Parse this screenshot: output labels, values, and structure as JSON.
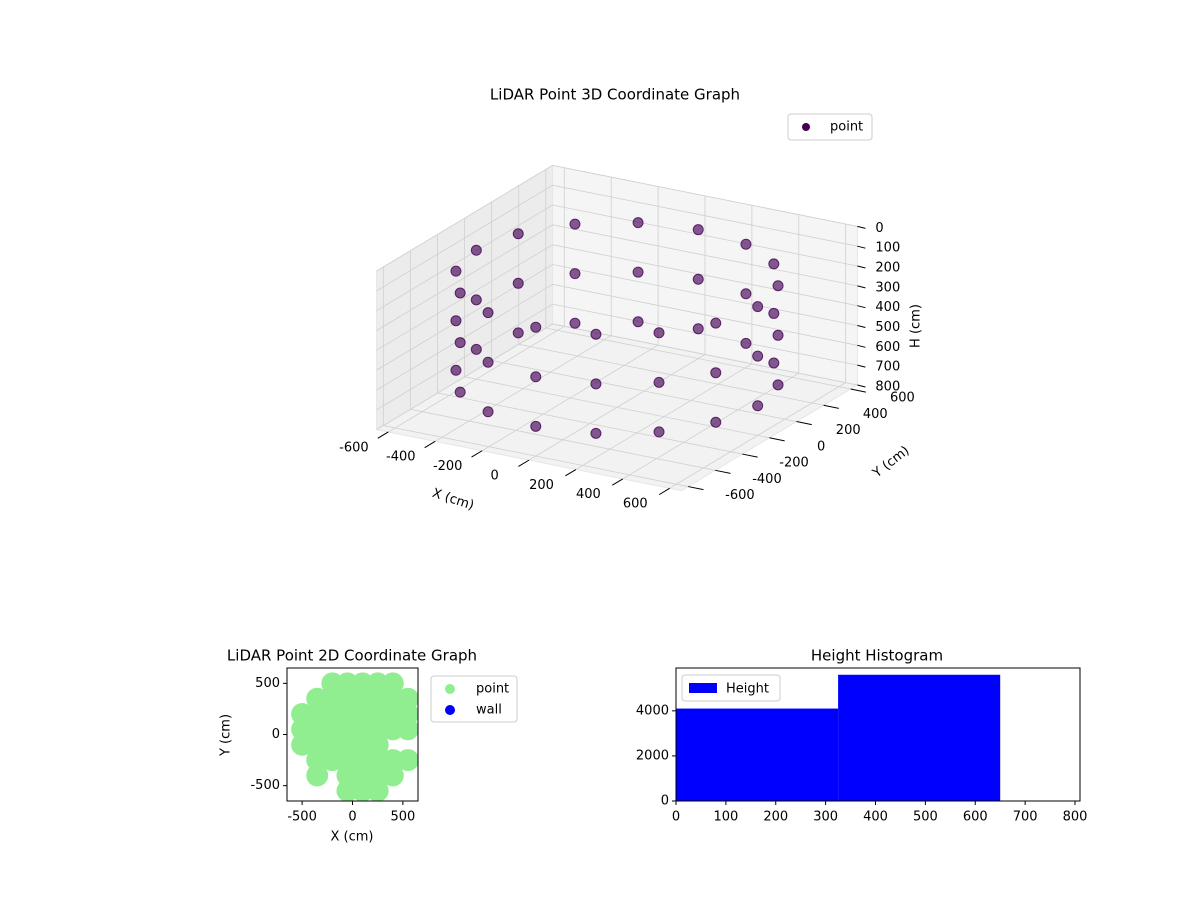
{
  "chart_data": [
    {
      "type": "scatter3d",
      "title": "LiDAR Point 3D Coordinate Graph",
      "xlabel": "X (cm)",
      "ylabel": "Y (cm)",
      "zlabel": "H (cm)",
      "xlim": [
        -650,
        650
      ],
      "ylim": [
        -650,
        650
      ],
      "zlim": [
        800,
        0
      ],
      "xticks": [
        -600,
        -400,
        -200,
        0,
        200,
        400,
        600
      ],
      "yticks": [
        -600,
        -400,
        -200,
        0,
        200,
        400,
        600
      ],
      "zticks": [
        0,
        100,
        200,
        300,
        400,
        500,
        600,
        700,
        800
      ],
      "grid": true,
      "legend": "upper right",
      "series": [
        {
          "name": "point",
          "color": "#440154",
          "x": [
            600,
            554,
            424,
            230,
            0,
            -230,
            -424,
            -554,
            -600,
            -554,
            -424,
            -230,
            0,
            230,
            424,
            554,
            600,
            554,
            424,
            230,
            0,
            -230,
            -424,
            -554,
            -600,
            -554,
            -424,
            -230,
            0,
            230,
            424,
            554,
            600,
            554,
            424,
            230,
            0,
            -230,
            -424,
            -554,
            -600,
            -554,
            -424,
            -230,
            0,
            230,
            424,
            554
          ],
          "y": [
            0,
            230,
            424,
            554,
            600,
            554,
            424,
            230,
            0,
            -230,
            -424,
            -554,
            -600,
            -554,
            -424,
            -230,
            0,
            230,
            424,
            554,
            600,
            554,
            424,
            230,
            0,
            -230,
            -424,
            -554,
            -600,
            -554,
            -424,
            -230,
            0,
            230,
            424,
            554,
            600,
            554,
            424,
            230,
            0,
            -230,
            -424,
            -554,
            -600,
            -554,
            -424,
            -230
          ],
          "z": [
            150,
            150,
            150,
            150,
            150,
            150,
            150,
            150,
            150,
            150,
            150,
            150,
            150,
            150,
            150,
            150,
            400,
            400,
            400,
            400,
            400,
            400,
            400,
            400,
            400,
            400,
            400,
            400,
            400,
            400,
            400,
            400,
            650,
            650,
            650,
            650,
            650,
            650,
            650,
            650,
            650,
            650,
            650,
            650,
            650,
            650,
            650,
            650
          ]
        }
      ]
    },
    {
      "type": "scatter",
      "title": "LiDAR Point 2D Coordinate Graph",
      "xlabel": "X (cm)",
      "ylabel": "Y (cm)",
      "xlim": [
        -650,
        650
      ],
      "ylim": [
        -650,
        650
      ],
      "xticks": [
        -500,
        0,
        500
      ],
      "yticks": [
        -500,
        0,
        500
      ],
      "legend": "outside right",
      "series": [
        {
          "name": "point",
          "color": "#90ee90",
          "x": [
            -500,
            -500,
            -500,
            -350,
            -350,
            -350,
            -350,
            -350,
            -350,
            -200,
            -200,
            -200,
            -200,
            -200,
            -200,
            -50,
            -50,
            -50,
            -50,
            -50,
            -50,
            -50,
            -50,
            100,
            100,
            100,
            100,
            100,
            100,
            100,
            100,
            250,
            250,
            250,
            250,
            250,
            250,
            250,
            250,
            400,
            400,
            400,
            400,
            400,
            400,
            550,
            550,
            550,
            550
          ],
          "y": [
            -100,
            50,
            200,
            -400,
            -250,
            -100,
            50,
            200,
            350,
            -250,
            -100,
            50,
            200,
            350,
            500,
            -550,
            -400,
            -250,
            -100,
            50,
            200,
            350,
            500,
            -550,
            -400,
            -250,
            -100,
            50,
            200,
            350,
            500,
            -550,
            -400,
            -250,
            -100,
            50,
            200,
            350,
            500,
            -400,
            -250,
            50,
            200,
            350,
            500,
            -250,
            50,
            200,
            350
          ]
        },
        {
          "name": "wall",
          "color": "#0000ff",
          "x": [],
          "y": []
        }
      ]
    },
    {
      "type": "histogram",
      "title": "Height Histogram",
      "xlim": [
        0,
        810
      ],
      "ylim": [
        0,
        5900
      ],
      "xticks": [
        0,
        100,
        200,
        300,
        400,
        500,
        600,
        700,
        800
      ],
      "yticks": [
        0,
        2000,
        4000
      ],
      "legend": "upper left",
      "series": [
        {
          "name": "Height",
          "color": "#0000ff",
          "bins": [
            0,
            325,
            650
          ],
          "counts": [
            4100,
            5600
          ]
        }
      ]
    }
  ]
}
